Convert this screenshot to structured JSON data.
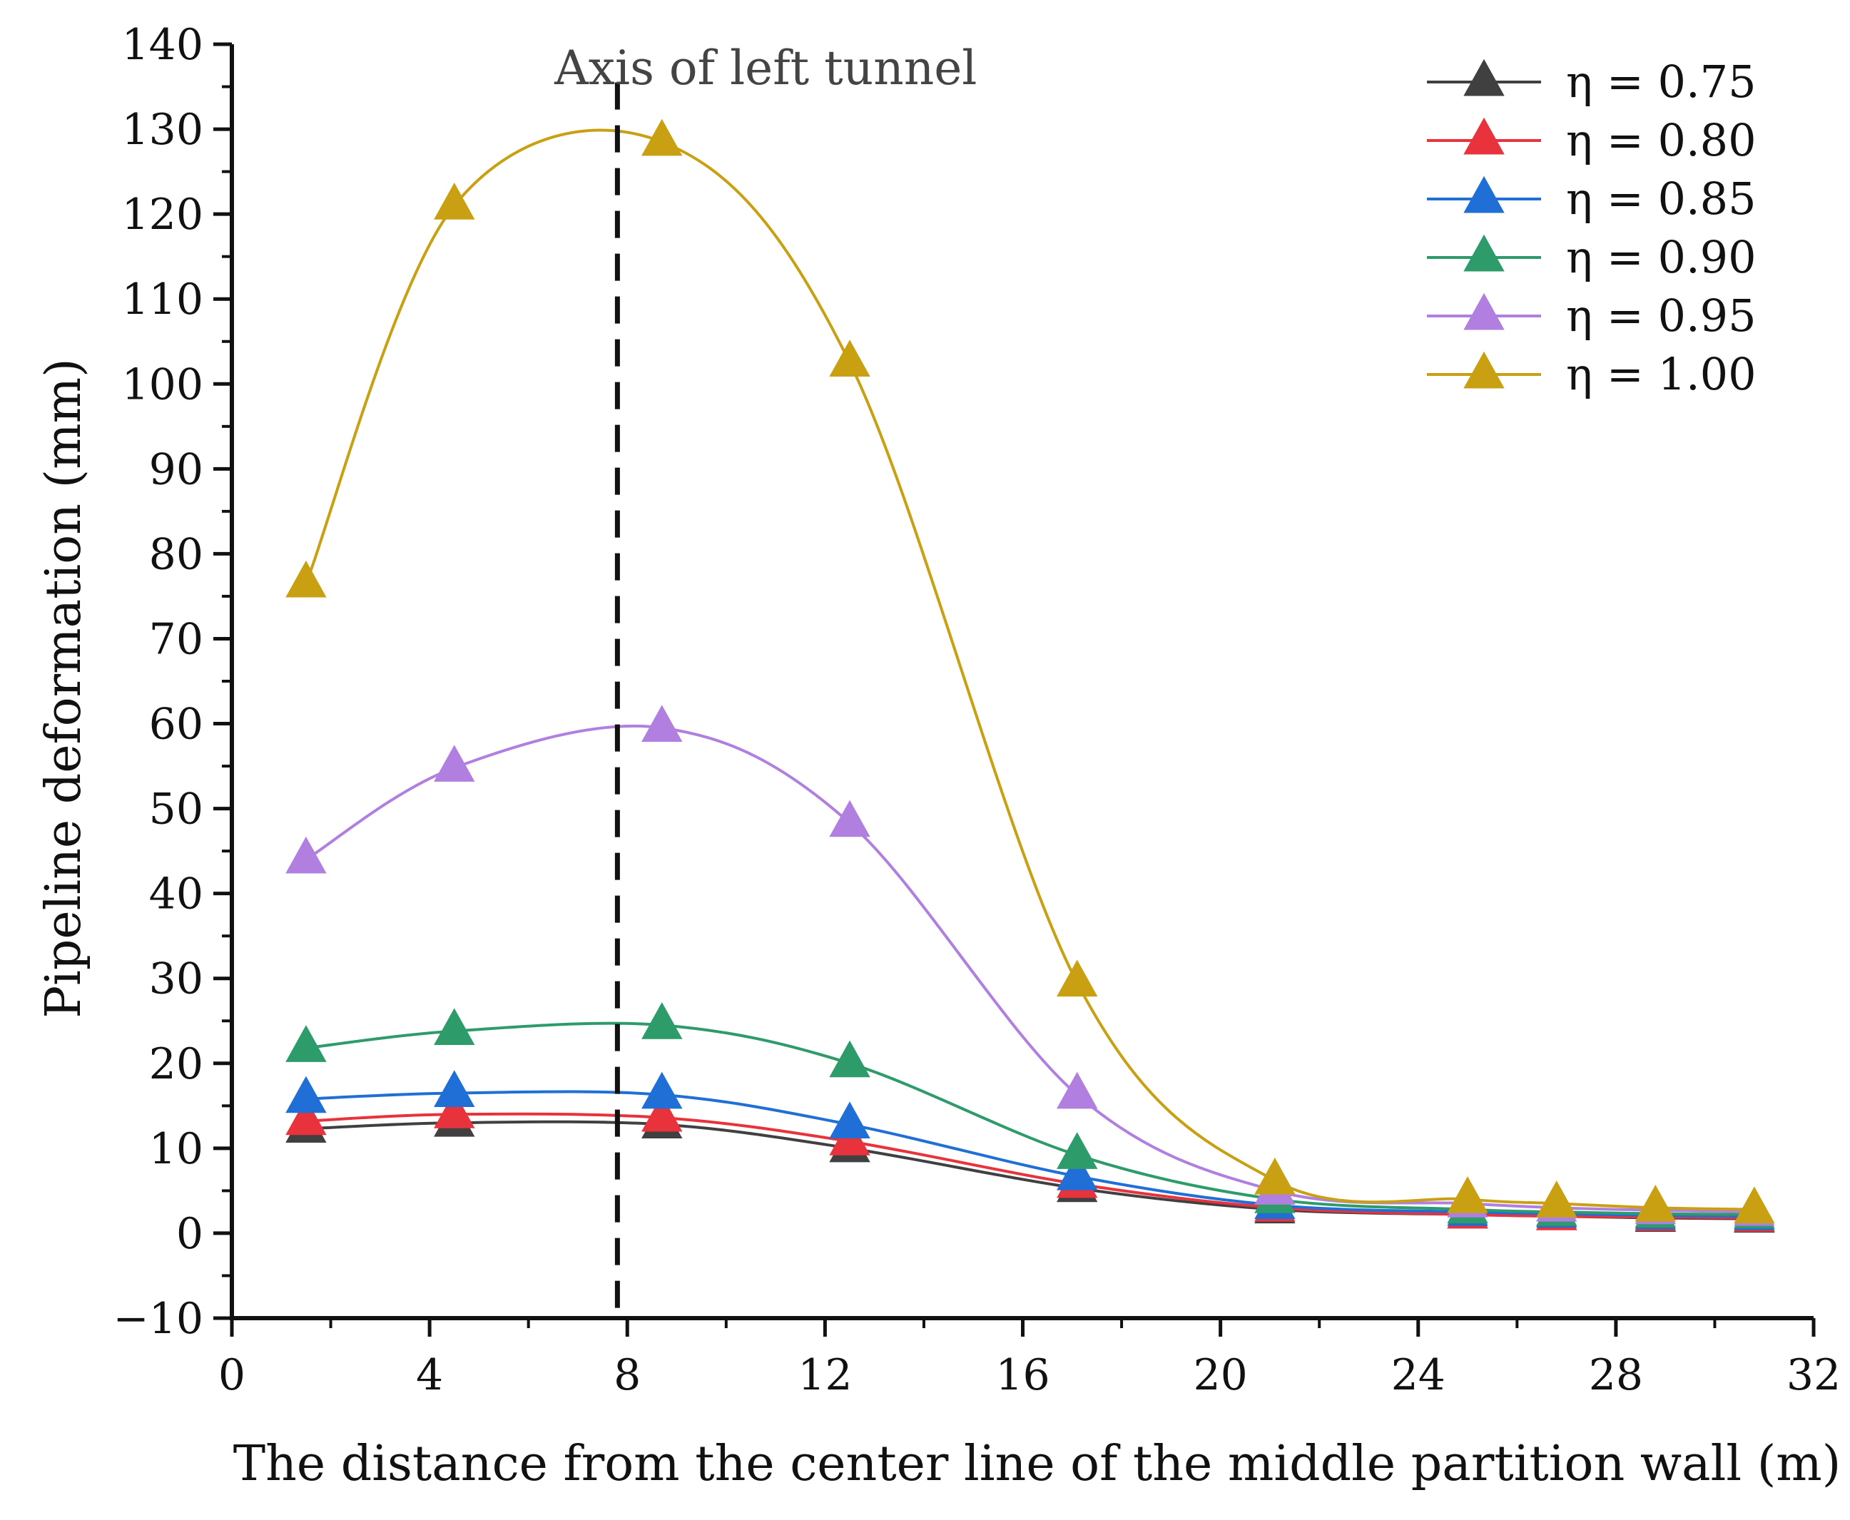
{
  "chart_data": {
    "type": "line",
    "title": "",
    "xlabel": "The distance from the center line of the middle partition wall (m)",
    "ylabel": "Pipeline deformation (mm)",
    "xlim": [
      0,
      32
    ],
    "ylim": [
      -10,
      140
    ],
    "xticks": [
      0,
      4,
      8,
      12,
      16,
      20,
      24,
      28,
      32
    ],
    "xtick_labels": [
      "0",
      "4",
      "8",
      "12",
      "16",
      "20",
      "24",
      "28",
      "32"
    ],
    "yticks": [
      -10,
      0,
      10,
      20,
      30,
      40,
      50,
      60,
      70,
      80,
      90,
      100,
      110,
      120,
      130,
      140
    ],
    "ytick_labels": [
      "−10",
      "0",
      "10",
      "20",
      "30",
      "40",
      "50",
      "60",
      "70",
      "80",
      "90",
      "100",
      "110",
      "120",
      "130",
      "140"
    ],
    "grid": false,
    "legend_position": "top-right",
    "annotation": {
      "text": "Axis of left tunnel",
      "x": 7.8
    },
    "x": [
      1.5,
      4.5,
      8.7,
      12.5,
      17.1,
      21.1,
      25.0,
      26.8,
      28.8,
      30.8
    ],
    "series": [
      {
        "name": "η = 0.75",
        "color": "#404040",
        "values": [
          12.3,
          13.0,
          12.8,
          10.0,
          5.3,
          2.8,
          2.2,
          2.0,
          1.8,
          1.7
        ]
      },
      {
        "name": "η = 0.80",
        "color": "#e8323c",
        "values": [
          13.2,
          14.0,
          13.6,
          10.8,
          5.8,
          3.0,
          2.2,
          2.0,
          1.9,
          1.8
        ]
      },
      {
        "name": "η = 0.85",
        "color": "#1f6fd6",
        "values": [
          15.8,
          16.5,
          16.3,
          12.8,
          6.7,
          3.3,
          2.5,
          2.3,
          2.1,
          2.0
        ]
      },
      {
        "name": "η = 0.90",
        "color": "#2e9b6a",
        "values": [
          21.8,
          23.8,
          24.5,
          20.0,
          9.2,
          4.0,
          2.8,
          2.5,
          2.3,
          2.2
        ]
      },
      {
        "name": "η = 0.95",
        "color": "#b07fe0",
        "values": [
          44.0,
          54.8,
          59.5,
          48.3,
          16.3,
          5.0,
          3.5,
          3.0,
          2.7,
          2.5
        ]
      },
      {
        "name": "η = 1.00",
        "color": "#c9a012",
        "values": [
          76.5,
          121.0,
          128.5,
          102.5,
          29.5,
          6.2,
          4.0,
          3.5,
          3.0,
          2.8
        ]
      }
    ]
  }
}
